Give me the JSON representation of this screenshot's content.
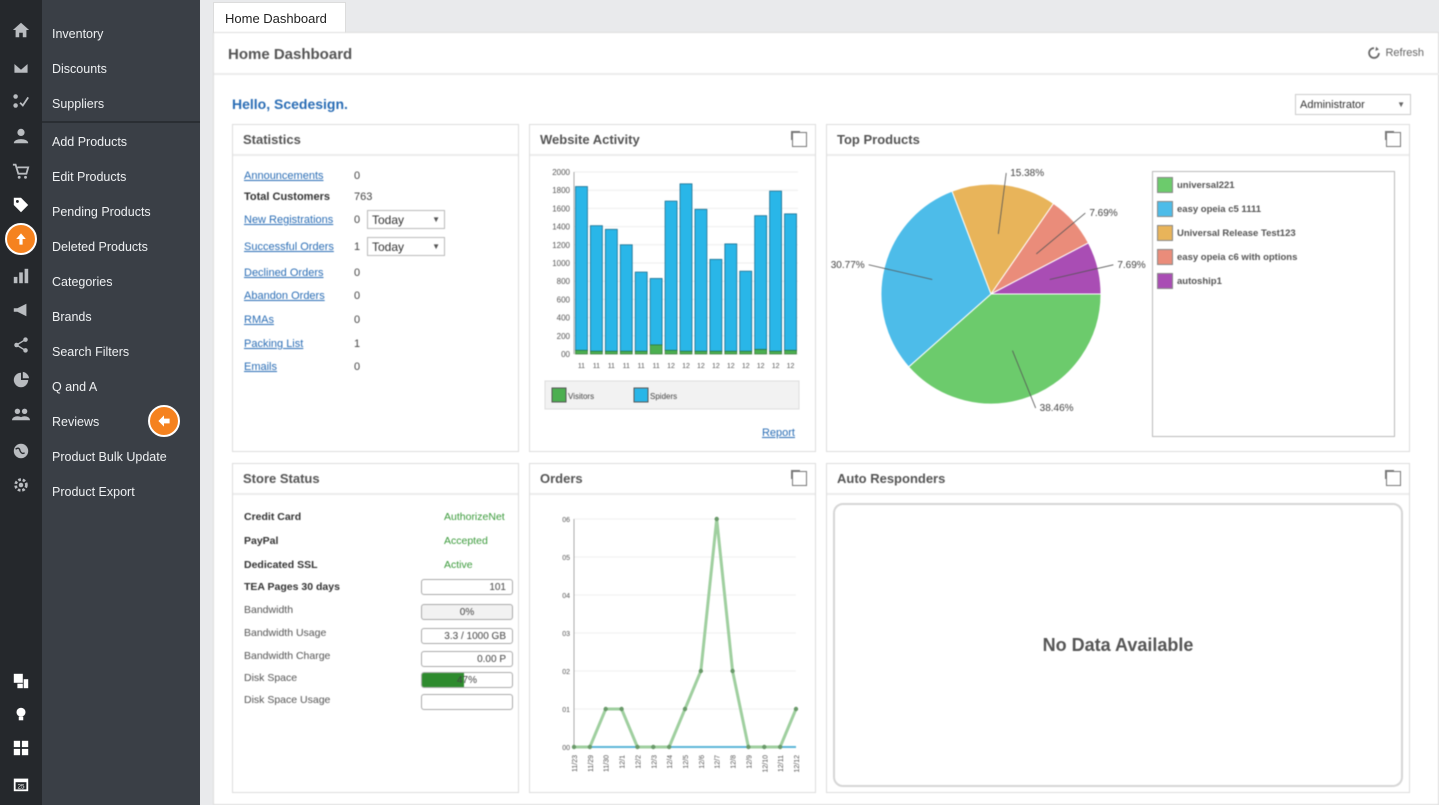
{
  "rail_icons": [
    "home-icon",
    "mail-icon",
    "flow-icon",
    "user-icon",
    "cart-icon",
    "tag-icon",
    "upload-icon",
    "bar-chart-icon",
    "megaphone-icon",
    "share-icon",
    "pie-icon",
    "users-icon",
    "globe-icon",
    "gear-icon",
    "layout-icon",
    "lightbulb-icon",
    "grid-icon",
    "calendar-icon"
  ],
  "menu": {
    "items": [
      "Inventory",
      "Discounts",
      "Suppliers",
      "Add Products",
      "Edit Products",
      "Pending Products",
      "Deleted Products",
      "Categories",
      "Brands",
      "Search Filters",
      "Q and A",
      "Reviews",
      "Product Bulk Update",
      "Product Export"
    ]
  },
  "tab": {
    "label": "Home Dashboard"
  },
  "header": {
    "title": "Home Dashboard",
    "refresh": "Refresh"
  },
  "greeting": "Hello, Scedesign.",
  "role": "Administrator",
  "statistics": {
    "title": "Statistics",
    "rows": [
      {
        "label": "Announcements",
        "value": "0"
      },
      {
        "label": "Total Customers",
        "value": "763"
      },
      {
        "label": "New Registrations",
        "value": "0",
        "select": "Today"
      },
      {
        "label": "Successful Orders",
        "value": "1",
        "select": "Today"
      },
      {
        "label": "Declined Orders",
        "value": "0"
      },
      {
        "label": "Abandon Orders",
        "value": "0"
      },
      {
        "label": "RMAs",
        "value": "0"
      },
      {
        "label": "Packing List",
        "value": "1"
      },
      {
        "label": "Emails",
        "value": "0"
      }
    ]
  },
  "website_activity": {
    "title": "Website Activity",
    "report": "Report",
    "chart_data": {
      "type": "bar",
      "x": [
        "11",
        "11",
        "11",
        "11",
        "11",
        "11",
        "12",
        "12",
        "12",
        "12",
        "12",
        "12",
        "12",
        "12",
        "12"
      ],
      "ylim": [
        0,
        2000
      ],
      "yticks": [
        "2000",
        "1800",
        "1600",
        "1400",
        "1200",
        "1000",
        "800",
        "600",
        "400",
        "200",
        "00"
      ],
      "series": [
        {
          "name": "Visitors",
          "color": "#4caf50",
          "values": [
            40,
            30,
            30,
            30,
            30,
            100,
            40,
            30,
            30,
            30,
            30,
            30,
            50,
            30,
            40
          ]
        },
        {
          "name": "Spiders",
          "color": "#29b6e8",
          "values": [
            1800,
            1380,
            1340,
            1170,
            870,
            730,
            1640,
            1840,
            1560,
            1010,
            1180,
            880,
            1470,
            1760,
            1500
          ]
        }
      ]
    }
  },
  "top_products": {
    "title": "Top Products",
    "chart_data": {
      "type": "pie",
      "labels": [
        "universal221",
        "easy opeia c5 1111",
        "Universal Release Test123",
        "easy opeia c6 with options",
        "autoship1"
      ],
      "values": [
        38.46,
        30.77,
        15.38,
        7.69,
        7.69
      ],
      "value_labels": [
        "38.46%",
        "30.77%",
        "15.38%",
        "7.69%",
        "7.69%"
      ],
      "colors": [
        "#6ccb6c",
        "#4dbce9",
        "#e8b45a",
        "#ea8c7a",
        "#a94db4"
      ]
    }
  },
  "store_status": {
    "title": "Store Status",
    "rows": [
      {
        "label": "Credit Card",
        "value": "AuthorizeNet"
      },
      {
        "label": "PayPal",
        "value": "Accepted"
      },
      {
        "label": "Dedicated SSL",
        "value": "Active"
      },
      {
        "label": "TEA Pages 30 days",
        "value": "101"
      },
      {
        "label": "Bandwidth",
        "value": "0%"
      },
      {
        "label": "Bandwidth Usage",
        "value": "3.3 / 1000 GB"
      },
      {
        "label": "Bandwidth Charge",
        "value": "0.00 P"
      },
      {
        "label": "Disk Space",
        "value": "47%",
        "fill": 0.47
      },
      {
        "label": "Disk Space Usage",
        "value": ""
      }
    ]
  },
  "orders": {
    "title": "Orders",
    "chart_data": {
      "type": "line",
      "x": [
        "11/23",
        "11/29",
        "11/30",
        "12/1",
        "12/2",
        "12/3",
        "12/4",
        "12/5",
        "12/6",
        "12/7",
        "12/8",
        "12/9",
        "12/10",
        "12/11",
        "12/12"
      ],
      "y": [
        0,
        0,
        0.1,
        0.1,
        0,
        0,
        0,
        0.1,
        0.2,
        0.6,
        0.2,
        0,
        0,
        0,
        0.1
      ],
      "ylim": [
        0,
        0.6
      ],
      "yticks": [
        "06",
        "05",
        "04",
        "03",
        "02",
        "01",
        "00"
      ],
      "color": "#9fcf9f"
    }
  },
  "auto_responders": {
    "title": "Auto Responders",
    "empty": "No Data Available"
  }
}
